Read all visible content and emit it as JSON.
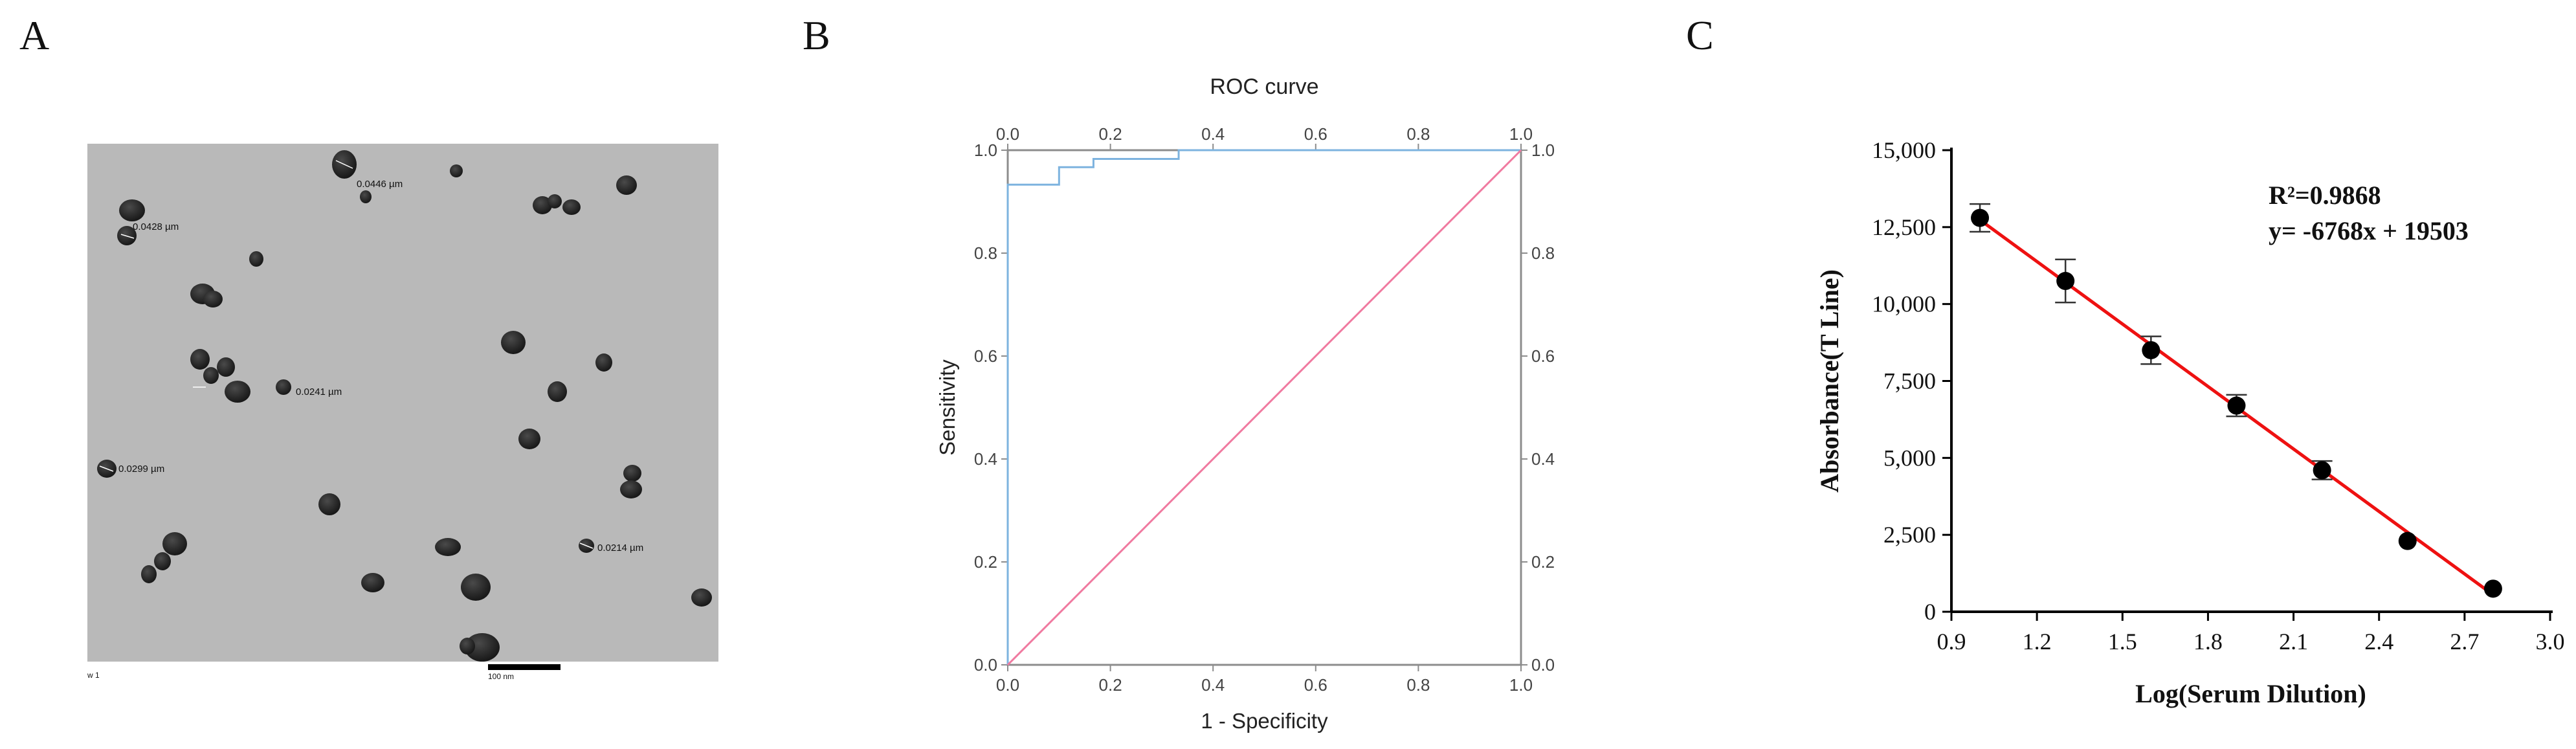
{
  "panels": [
    {
      "id": "A",
      "letter": "A"
    },
    {
      "id": "B",
      "letter": "B"
    },
    {
      "id": "C",
      "letter": "C"
    }
  ],
  "tem": {
    "measurements": [
      "0.0446 µm",
      "0.0428 µm",
      "0.0241 µm",
      "0.0299 µm",
      "0.0214 µm"
    ],
    "corner_text": "w 1",
    "scale_bar_label": "100 nm"
  },
  "chart_data": [
    {
      "panel": "B",
      "type": "line",
      "title": "ROC curve",
      "xlabel": "1 - Specificity",
      "ylabel": "Sensitivity",
      "xlim": [
        0,
        1
      ],
      "ylim": [
        0,
        1
      ],
      "x_ticks": [
        "0.0",
        "0.2",
        "0.4",
        "0.6",
        "0.8",
        "1.0"
      ],
      "y_ticks": [
        "0.0",
        "0.2",
        "0.4",
        "0.6",
        "0.8",
        "1.0"
      ],
      "grid": false,
      "series": [
        {
          "color": "#7db3df",
          "points": [
            [
              0,
              0
            ],
            [
              0,
              0.933
            ],
            [
              0.1,
              0.933
            ],
            [
              0.1,
              0.967
            ],
            [
              0.167,
              0.967
            ],
            [
              0.167,
              0.983
            ],
            [
              0.333,
              0.983
            ],
            [
              0.333,
              1.0
            ],
            [
              1.0,
              1.0
            ]
          ]
        },
        {
          "color": "#f07aa0",
          "points": [
            [
              0,
              0
            ],
            [
              1,
              1
            ]
          ]
        }
      ]
    },
    {
      "panel": "C",
      "type": "scatter",
      "xlabel": "Log(Serum Dilution)",
      "ylabel": "Absorbance(T Line)",
      "xlim": [
        0.9,
        3.0
      ],
      "ylim": [
        0,
        15000
      ],
      "x_ticks": [
        "0.9",
        "1.2",
        "1.5",
        "1.8",
        "2.1",
        "2.4",
        "2.7",
        "3.0"
      ],
      "y_ticks": [
        "0",
        "2,500",
        "5,000",
        "7,500",
        "10,000",
        "12,500",
        "15,000"
      ],
      "grid": false,
      "annotations": [
        "R²=0.9868",
        "y= -6768x + 19503"
      ],
      "fit_color": "#ee1111",
      "fit_line": {
        "slope": -6768,
        "intercept": 19503,
        "x_range": [
          1.0,
          2.8
        ]
      },
      "points": [
        {
          "x": 1.0,
          "y": 12800,
          "err": 450
        },
        {
          "x": 1.3,
          "y": 10750,
          "err": 700
        },
        {
          "x": 1.6,
          "y": 8500,
          "err": 450
        },
        {
          "x": 1.9,
          "y": 6700,
          "err": 350
        },
        {
          "x": 2.2,
          "y": 4600,
          "err": 300
        },
        {
          "x": 2.5,
          "y": 2300,
          "err": 0
        },
        {
          "x": 2.8,
          "y": 750,
          "err": 0
        }
      ]
    }
  ]
}
